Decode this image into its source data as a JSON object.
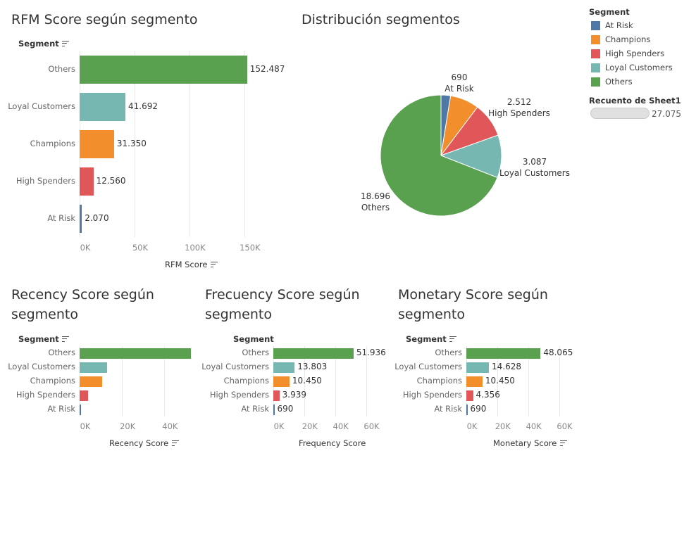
{
  "colors": {
    "At Risk": "#4e79a7",
    "Champions": "#f28e2b",
    "High Spenders": "#e15759",
    "Loyal Customers": "#76b7b2",
    "Others": "#59a14f"
  },
  "chart_data": [
    {
      "type": "bar",
      "title": "RFM Score según segmento",
      "shelf_label": "Segment",
      "xlabel": "RFM Score",
      "categories": [
        "Others",
        "Loyal Customers",
        "Champions",
        "High Spenders",
        "At Risk"
      ],
      "values": [
        152487,
        41692,
        31350,
        12560,
        2070
      ],
      "value_labels": [
        "152.487",
        "41.692",
        "31.350",
        "12.560",
        "2.070"
      ],
      "xlim": [
        0,
        195000
      ],
      "ticks": [
        0,
        50000,
        100000,
        150000
      ],
      "tick_labels": [
        "0K",
        "50K",
        "100K",
        "150K"
      ]
    },
    {
      "type": "pie",
      "title": "Distribución segmentos",
      "slices": [
        {
          "name": "At Risk",
          "value": 690,
          "label": "690"
        },
        {
          "name": "Champions",
          "value": 2090,
          "label": ""
        },
        {
          "name": "High Spenders",
          "value": 2512,
          "label": "2.512"
        },
        {
          "name": "Loyal Customers",
          "value": 3087,
          "label": "3.087"
        },
        {
          "name": "Others",
          "value": 18696,
          "label": "18.696"
        }
      ]
    },
    {
      "type": "bar",
      "title": "Recency Score según segmento",
      "shelf_label": "Segment",
      "xlabel": "Recency Score",
      "categories": [
        "Others",
        "Loyal Customers",
        "Champions",
        "High Spenders",
        "At Risk"
      ],
      "values": [
        52500,
        13000,
        10500,
        3900,
        690
      ],
      "value_labels": [
        "",
        "",
        "",
        "",
        ""
      ],
      "xlim": [
        0,
        52500
      ],
      "ticks": [
        0,
        20000,
        40000
      ],
      "tick_labels": [
        "0K",
        "20K",
        "40K"
      ]
    },
    {
      "type": "bar",
      "title": "Frecuency Score según segmento",
      "shelf_label": "Segment",
      "xlabel": "Frequency Score",
      "categories": [
        "Others",
        "Loyal Customers",
        "Champions",
        "High Spenders",
        "At Risk"
      ],
      "values": [
        51936,
        13803,
        10450,
        3939,
        690
      ],
      "value_labels": [
        "51.936",
        "13.803",
        "10.450",
        "3.939",
        "690"
      ],
      "xlim": [
        0,
        73000
      ],
      "ticks": [
        0,
        20000,
        40000,
        60000
      ],
      "tick_labels": [
        "0K",
        "20K",
        "40K",
        "60K"
      ]
    },
    {
      "type": "bar",
      "title": "Monetary Score según segmento",
      "shelf_label": "Segment",
      "xlabel": "Monetary Score",
      "categories": [
        "Others",
        "Loyal Customers",
        "Champions",
        "High Spenders",
        "At Risk"
      ],
      "values": [
        48065,
        14628,
        10450,
        4356,
        690
      ],
      "value_labels": [
        "48.065",
        "14.628",
        "10.450",
        "4.356",
        "690"
      ],
      "xlim": [
        0,
        73000
      ],
      "ticks": [
        0,
        20000,
        40000,
        60000
      ],
      "tick_labels": [
        "0K",
        "20K",
        "40K",
        "60K"
      ]
    }
  ],
  "legend": {
    "title": "Segment",
    "items": [
      "At Risk",
      "Champions",
      "High Spenders",
      "Loyal Customers",
      "Others"
    ]
  },
  "size_legend": {
    "title": "Recuento de Sheet1",
    "value": "27.075"
  }
}
